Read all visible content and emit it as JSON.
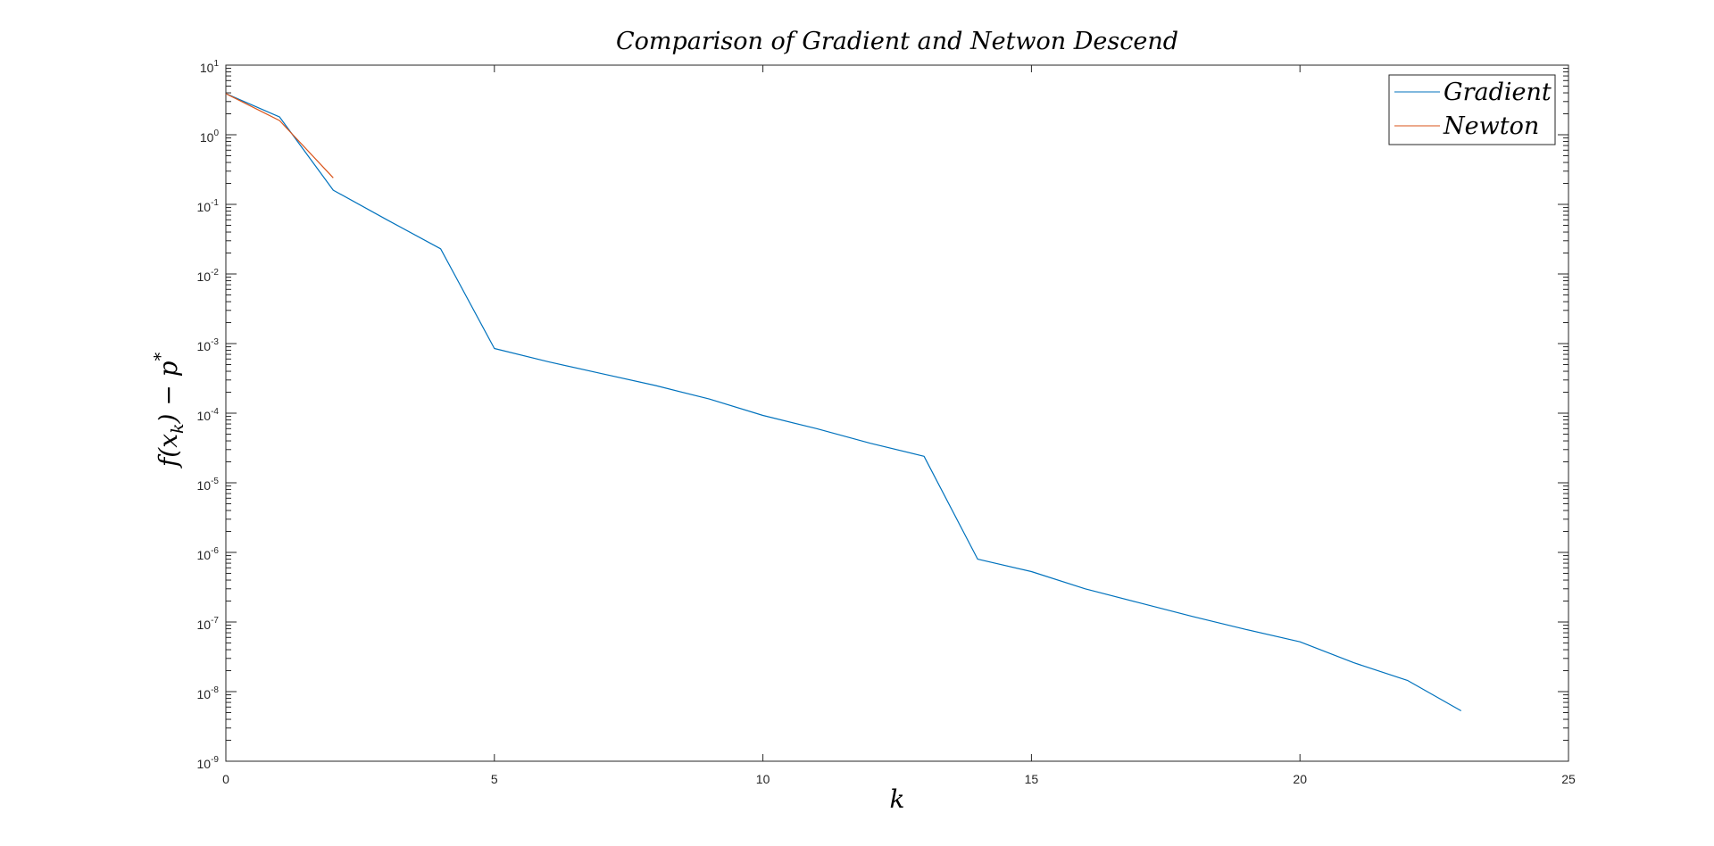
{
  "chart_data": {
    "type": "line",
    "title": "Comparison of Gradient and Netwon Descend",
    "xlabel": "k",
    "ylabel_parts": {
      "f": "f(x",
      "sub": "k",
      "mid": ") − p",
      "sup": "*"
    },
    "x_scale": "linear",
    "y_scale": "log",
    "xlim": [
      0,
      25
    ],
    "ylim": [
      1e-09,
      10
    ],
    "x_ticks": [
      0,
      5,
      10,
      15,
      20,
      25
    ],
    "x_tick_labels": [
      "0",
      "5",
      "10",
      "15",
      "20",
      "25"
    ],
    "y_tick_exponents": [
      -9,
      -8,
      -7,
      -6,
      -5,
      -4,
      -3,
      -2,
      -1,
      0,
      1
    ],
    "y_tick_exponent_labels": [
      "-9",
      "-8",
      "-7",
      "-6",
      "-5",
      "-4",
      "-3",
      "-2",
      "-1",
      "0",
      "1"
    ],
    "y_tick_base": "10",
    "grid": false,
    "legend_position": "top-right",
    "series": [
      {
        "name": "Gradient",
        "color": "#0072BD",
        "x": [
          0,
          1,
          2,
          3,
          4,
          5,
          6,
          7,
          8,
          9,
          10,
          11,
          12,
          13,
          14,
          15,
          16,
          17,
          18,
          19,
          20,
          21,
          22,
          23
        ],
        "y": [
          3.9,
          1.8,
          0.16,
          0.06,
          0.023,
          0.00085,
          0.00055,
          0.00037,
          0.00025,
          0.00016,
          9.3e-05,
          6e-05,
          3.7e-05,
          2.4e-05,
          8e-07,
          5.3e-07,
          3e-07,
          1.9e-07,
          1.2e-07,
          7.8e-08,
          5.2e-08,
          2.6e-08,
          1.45e-08,
          5.3e-09
        ]
      },
      {
        "name": "Newton",
        "color": "#D95319",
        "x": [
          0,
          1,
          2
        ],
        "y": [
          3.9,
          1.6,
          0.24
        ]
      }
    ]
  }
}
